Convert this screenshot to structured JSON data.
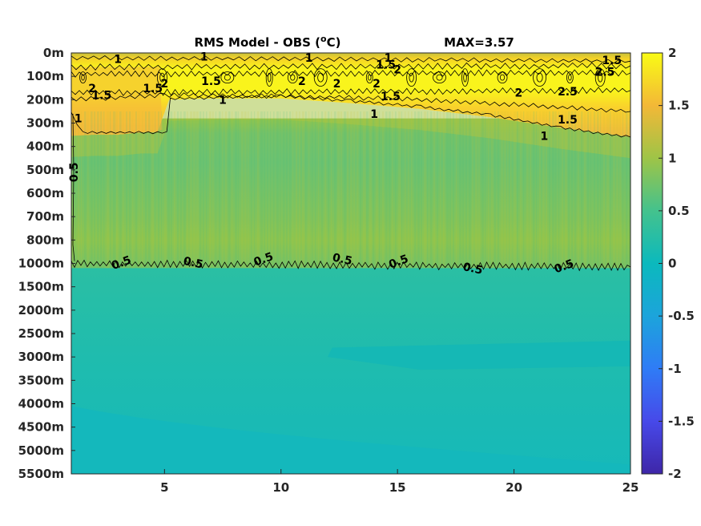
{
  "chart_data": {
    "type": "heatmap",
    "title": "RMS Model - OBS (",
    "title_sup": "o",
    "title_unit": "C)",
    "max_label": "MAX=3.57",
    "x_ticks": [
      5,
      10,
      15,
      20,
      25
    ],
    "xlim": [
      1,
      25
    ],
    "depth_labels": [
      "0m",
      "100m",
      "200m",
      "300m",
      "400m",
      "500m",
      "600m",
      "700m",
      "800m",
      "1000m",
      "1500m",
      "2000m",
      "2500m",
      "3000m",
      "3500m",
      "4000m",
      "4500m",
      "5000m",
      "5500m"
    ],
    "colorbar": {
      "colormap": "parula",
      "clim": [
        -2,
        2
      ],
      "ticks": [
        "2",
        "1.5",
        "1",
        "0.5",
        "0",
        "-0.5",
        "-1",
        "-1.5",
        "-2"
      ],
      "tick_values": [
        2,
        1.5,
        1,
        0.5,
        0,
        -0.5,
        -1,
        -1.5,
        -2
      ]
    },
    "contour_labels": [
      {
        "text": "1",
        "x": 3.0,
        "depth_index": 0.25
      },
      {
        "text": "1",
        "x": 6.7,
        "depth_index": 0.15
      },
      {
        "text": "1",
        "x": 11.2,
        "depth_index": 0.2
      },
      {
        "text": "1",
        "x": 14.6,
        "depth_index": 0.2
      },
      {
        "text": "1.5",
        "x": 14.5,
        "depth_index": 0.5
      },
      {
        "text": "2",
        "x": 15.0,
        "depth_index": 0.7
      },
      {
        "text": "1.5",
        "x": 24.2,
        "depth_index": 0.3
      },
      {
        "text": "2.5",
        "x": 23.9,
        "depth_index": 0.8
      },
      {
        "text": "2",
        "x": 1.9,
        "depth_index": 1.5
      },
      {
        "text": "1.5",
        "x": 2.3,
        "depth_index": 1.8
      },
      {
        "text": "1.5",
        "x": 4.5,
        "depth_index": 1.5
      },
      {
        "text": "2",
        "x": 5.0,
        "depth_index": 1.3
      },
      {
        "text": "1.5",
        "x": 7.0,
        "depth_index": 1.2
      },
      {
        "text": "2",
        "x": 10.9,
        "depth_index": 1.2
      },
      {
        "text": "2",
        "x": 12.4,
        "depth_index": 1.3
      },
      {
        "text": "2",
        "x": 14.1,
        "depth_index": 1.3
      },
      {
        "text": "1.5",
        "x": 14.7,
        "depth_index": 1.85
      },
      {
        "text": "2",
        "x": 20.2,
        "depth_index": 1.7
      },
      {
        "text": "2.5",
        "x": 22.3,
        "depth_index": 1.65
      },
      {
        "text": "1",
        "x": 7.5,
        "depth_index": 2.0
      },
      {
        "text": "1",
        "x": 1.3,
        "depth_index": 2.8
      },
      {
        "text": "1",
        "x": 14.0,
        "depth_index": 2.6
      },
      {
        "text": "1.5",
        "x": 22.3,
        "depth_index": 2.85
      },
      {
        "text": "1",
        "x": 21.3,
        "depth_index": 3.55
      },
      {
        "text": "0.5",
        "x": 1.1,
        "depth_index": 5.1
      },
      {
        "text": "0.5",
        "x": 3.2,
        "depth_index": 8.95
      },
      {
        "text": "0.5",
        "x": 6.2,
        "depth_index": 8.95
      },
      {
        "text": "0.5",
        "x": 9.3,
        "depth_index": 8.8
      },
      {
        "text": "0.5",
        "x": 12.6,
        "depth_index": 8.8
      },
      {
        "text": "0.5",
        "x": 15.1,
        "depth_index": 8.9
      },
      {
        "text": "0.5",
        "x": 18.2,
        "depth_index": 9.2
      },
      {
        "text": "0.5",
        "x": 22.2,
        "depth_index": 9.1
      }
    ]
  }
}
